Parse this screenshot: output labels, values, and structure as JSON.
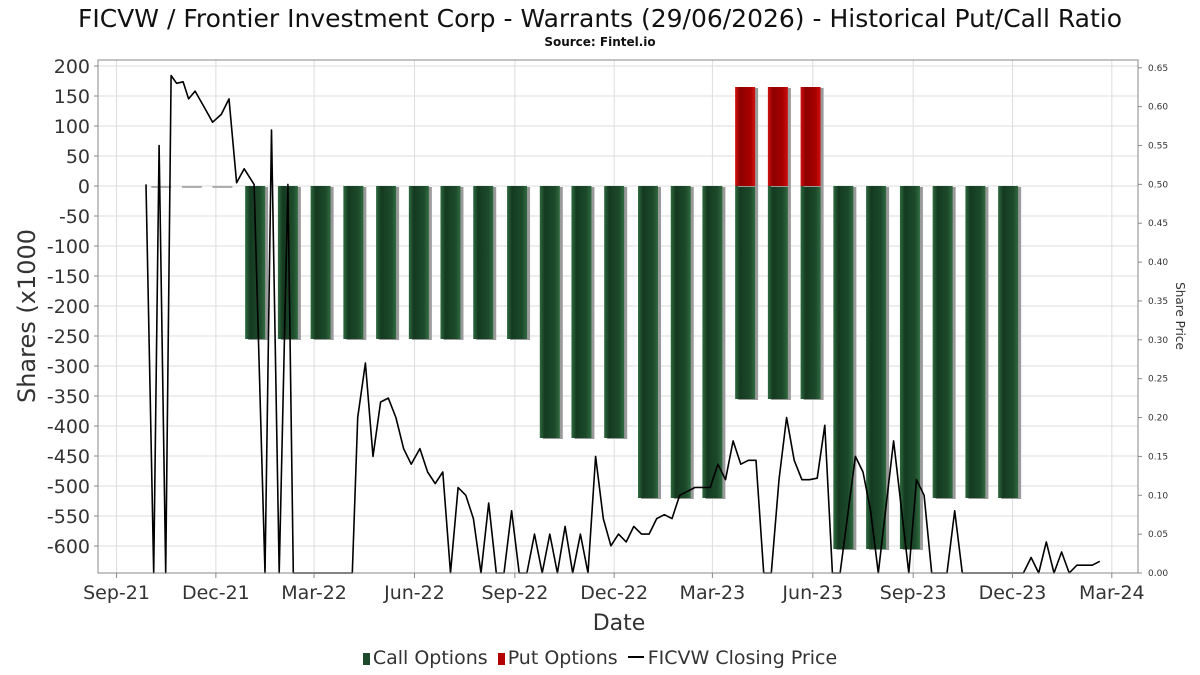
{
  "title": "FICVW / Frontier Investment Corp - Warrants (29/06/2026) - Historical Put/Call Ratio",
  "subtitle": "Source: Fintel.io",
  "legend": {
    "call": "Call Options",
    "put": "Put Options",
    "price": "FICVW Closing Price"
  },
  "chart_data": {
    "type": "bar",
    "xlabel": "Date",
    "ylabel_left": "Shares (x1000",
    "ylabel_right": "Share Price",
    "x_ticks": [
      "Sep-21",
      "Dec-21",
      "Mar-22",
      "Jun-22",
      "Sep-22",
      "Dec-22",
      "Mar-23",
      "Jun-23",
      "Sep-23",
      "Dec-23",
      "Mar-24"
    ],
    "x_range": [
      "2021-08-15",
      "2024-03-25"
    ],
    "y_left_ticks": [
      200,
      150,
      100,
      50,
      0,
      -50,
      -100,
      -150,
      -200,
      -250,
      -300,
      -350,
      -400,
      -450,
      -500,
      -550,
      -600
    ],
    "y_left_range": [
      -645,
      210
    ],
    "y_right_ticks": [
      0.65,
      0.6,
      0.55,
      0.5,
      0.45,
      0.4,
      0.35,
      0.3,
      0.25,
      0.2,
      0.15,
      0.1,
      0.05,
      0.0
    ],
    "y_right_range": [
      0,
      0.66
    ],
    "grid": true,
    "legend_position": "bottom",
    "colors": {
      "call": "#1e4a2c",
      "put": "#b30000",
      "price": "#000000"
    },
    "bars": [
      {
        "date": "2021-10-12",
        "call": 0,
        "put": 0
      },
      {
        "date": "2021-11-09",
        "call": 0,
        "put": 0
      },
      {
        "date": "2021-12-07",
        "call": 0,
        "put": 0
      },
      {
        "date": "2022-01-06",
        "call": -255,
        "put": 0
      },
      {
        "date": "2022-02-05",
        "call": -255,
        "put": 0
      },
      {
        "date": "2022-03-07",
        "call": -255,
        "put": 0
      },
      {
        "date": "2022-04-06",
        "call": -255,
        "put": 0
      },
      {
        "date": "2022-05-06",
        "call": -255,
        "put": 0
      },
      {
        "date": "2022-06-05",
        "call": -255,
        "put": 0
      },
      {
        "date": "2022-07-04",
        "call": -255,
        "put": 0
      },
      {
        "date": "2022-08-03",
        "call": -255,
        "put": 0
      },
      {
        "date": "2022-09-03",
        "call": -255,
        "put": 0
      },
      {
        "date": "2022-10-03",
        "call": -420,
        "put": 0
      },
      {
        "date": "2022-11-01",
        "call": -420,
        "put": 0
      },
      {
        "date": "2022-12-01",
        "call": -420,
        "put": 0
      },
      {
        "date": "2023-01-01",
        "call": -520,
        "put": 0
      },
      {
        "date": "2023-01-31",
        "call": -520,
        "put": 0
      },
      {
        "date": "2023-03-01",
        "call": -520,
        "put": 0
      },
      {
        "date": "2023-03-31",
        "call": -355,
        "put": 165
      },
      {
        "date": "2023-04-30",
        "call": -355,
        "put": 165
      },
      {
        "date": "2023-05-30",
        "call": -355,
        "put": 165
      },
      {
        "date": "2023-06-29",
        "call": -605,
        "put": 0
      },
      {
        "date": "2023-07-29",
        "call": -605,
        "put": 0
      },
      {
        "date": "2023-08-29",
        "call": -605,
        "put": 0
      },
      {
        "date": "2023-09-28",
        "call": -520,
        "put": 0
      },
      {
        "date": "2023-10-28",
        "call": -520,
        "put": 0
      },
      {
        "date": "2023-11-27",
        "call": -520,
        "put": 0
      }
    ],
    "price_series": [
      [
        "2021-09-28",
        0.5
      ],
      [
        "2021-10-05",
        0.0
      ],
      [
        "2021-10-10",
        0.55
      ],
      [
        "2021-10-16",
        0.0
      ],
      [
        "2021-10-21",
        0.64
      ],
      [
        "2021-10-26",
        0.63
      ],
      [
        "2021-11-01",
        0.632
      ],
      [
        "2021-11-06",
        0.61
      ],
      [
        "2021-11-12",
        0.62
      ],
      [
        "2021-11-20",
        0.6
      ],
      [
        "2021-11-28",
        0.58
      ],
      [
        "2021-12-06",
        0.59
      ],
      [
        "2021-12-13",
        0.61
      ],
      [
        "2021-12-20",
        0.502
      ],
      [
        "2021-12-27",
        0.52
      ],
      [
        "2022-01-05",
        0.5
      ],
      [
        "2022-01-15",
        0.0
      ],
      [
        "2022-01-21",
        0.57
      ],
      [
        "2022-01-28",
        0.0
      ],
      [
        "2022-02-05",
        0.5
      ],
      [
        "2022-02-10",
        0.0
      ],
      [
        "2022-03-01",
        0.0
      ],
      [
        "2022-04-05",
        0.0
      ],
      [
        "2022-04-10",
        0.2
      ],
      [
        "2022-04-17",
        0.27
      ],
      [
        "2022-04-24",
        0.15
      ],
      [
        "2022-05-01",
        0.22
      ],
      [
        "2022-05-08",
        0.225
      ],
      [
        "2022-05-15",
        0.2
      ],
      [
        "2022-05-22",
        0.16
      ],
      [
        "2022-05-29",
        0.14
      ],
      [
        "2022-06-06",
        0.16
      ],
      [
        "2022-06-13",
        0.13
      ],
      [
        "2022-06-20",
        0.115
      ],
      [
        "2022-06-27",
        0.13
      ],
      [
        "2022-07-04",
        0.0
      ],
      [
        "2022-07-11",
        0.11
      ],
      [
        "2022-07-18",
        0.1
      ],
      [
        "2022-07-25",
        0.07
      ],
      [
        "2022-08-01",
        0.0
      ],
      [
        "2022-08-08",
        0.09
      ],
      [
        "2022-08-15",
        0.0
      ],
      [
        "2022-08-22",
        0.0
      ],
      [
        "2022-08-29",
        0.08
      ],
      [
        "2022-09-05",
        0.0
      ],
      [
        "2022-09-12",
        0.0
      ],
      [
        "2022-09-19",
        0.05
      ],
      [
        "2022-09-26",
        0.0
      ],
      [
        "2022-10-03",
        0.05
      ],
      [
        "2022-10-10",
        0.0
      ],
      [
        "2022-10-17",
        0.06
      ],
      [
        "2022-10-24",
        0.0
      ],
      [
        "2022-10-31",
        0.05
      ],
      [
        "2022-11-07",
        0.0
      ],
      [
        "2022-11-14",
        0.15
      ],
      [
        "2022-11-21",
        0.07
      ],
      [
        "2022-11-28",
        0.035
      ],
      [
        "2022-12-05",
        0.05
      ],
      [
        "2022-12-12",
        0.04
      ],
      [
        "2022-12-19",
        0.06
      ],
      [
        "2022-12-26",
        0.05
      ],
      [
        "2023-01-02",
        0.05
      ],
      [
        "2023-01-09",
        0.07
      ],
      [
        "2023-01-16",
        0.075
      ],
      [
        "2023-01-23",
        0.07
      ],
      [
        "2023-01-30",
        0.1
      ],
      [
        "2023-02-13",
        0.11
      ],
      [
        "2023-02-27",
        0.11
      ],
      [
        "2023-03-06",
        0.14
      ],
      [
        "2023-03-13",
        0.12
      ],
      [
        "2023-03-20",
        0.17
      ],
      [
        "2023-03-27",
        0.14
      ],
      [
        "2023-04-03",
        0.145
      ],
      [
        "2023-04-10",
        0.145
      ],
      [
        "2023-04-17",
        0.0
      ],
      [
        "2023-04-24",
        0.0
      ],
      [
        "2023-05-01",
        0.12
      ],
      [
        "2023-05-08",
        0.2
      ],
      [
        "2023-05-15",
        0.145
      ],
      [
        "2023-05-22",
        0.12
      ],
      [
        "2023-05-29",
        0.12
      ],
      [
        "2023-06-05",
        0.122
      ],
      [
        "2023-06-12",
        0.19
      ],
      [
        "2023-06-19",
        0.0
      ],
      [
        "2023-06-26",
        0.0
      ],
      [
        "2023-07-10",
        0.15
      ],
      [
        "2023-07-17",
        0.13
      ],
      [
        "2023-07-24",
        0.08
      ],
      [
        "2023-07-31",
        0.0
      ],
      [
        "2023-08-14",
        0.17
      ],
      [
        "2023-08-28",
        0.0
      ],
      [
        "2023-09-04",
        0.12
      ],
      [
        "2023-09-11",
        0.1
      ],
      [
        "2023-09-18",
        0.0
      ],
      [
        "2023-09-25",
        0.0
      ],
      [
        "2023-10-02",
        0.0
      ],
      [
        "2023-10-09",
        0.08
      ],
      [
        "2023-10-16",
        0.0
      ],
      [
        "2023-11-13",
        0.0
      ],
      [
        "2023-12-11",
        0.0
      ],
      [
        "2023-12-18",
        0.02
      ],
      [
        "2023-12-25",
        0.0
      ],
      [
        "2024-01-01",
        0.04
      ],
      [
        "2024-01-08",
        0.0
      ],
      [
        "2024-01-15",
        0.027
      ],
      [
        "2024-01-22",
        0.0
      ],
      [
        "2024-01-29",
        0.01
      ],
      [
        "2024-02-12",
        0.01
      ],
      [
        "2024-02-19",
        0.015
      ]
    ]
  }
}
